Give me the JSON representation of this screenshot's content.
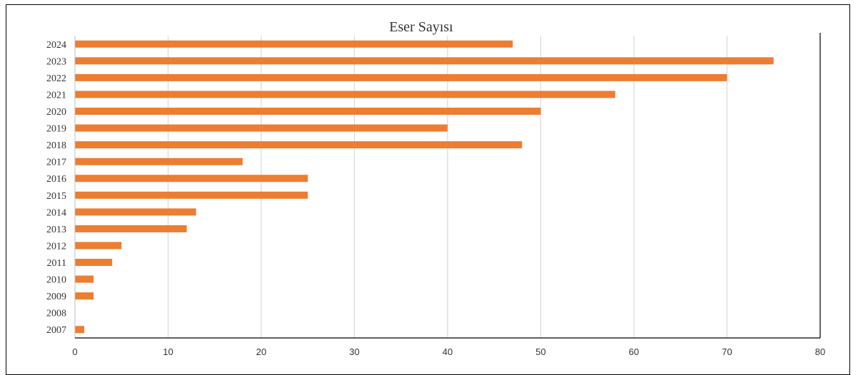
{
  "chart_data": {
    "type": "bar",
    "orientation": "horizontal",
    "title": "Eser Sayısı",
    "xlabel": "",
    "ylabel": "",
    "categories": [
      "2024",
      "2023",
      "2022",
      "2021",
      "2020",
      "2019",
      "2018",
      "2017",
      "2016",
      "2015",
      "2014",
      "2013",
      "2012",
      "2011",
      "2010",
      "2009",
      "2008",
      "2007"
    ],
    "values": [
      47,
      75,
      70,
      58,
      50,
      40,
      48,
      18,
      25,
      25,
      13,
      12,
      5,
      4,
      2,
      2,
      0,
      1
    ],
    "xlim": [
      0,
      80
    ],
    "xticks": [
      0,
      10,
      20,
      30,
      40,
      50,
      60,
      70,
      80
    ],
    "grid": "vertical",
    "legend": "none",
    "bar_color": "#ED7D31",
    "grid_color": "#D9D9D9",
    "axis_color": "#000000"
  }
}
